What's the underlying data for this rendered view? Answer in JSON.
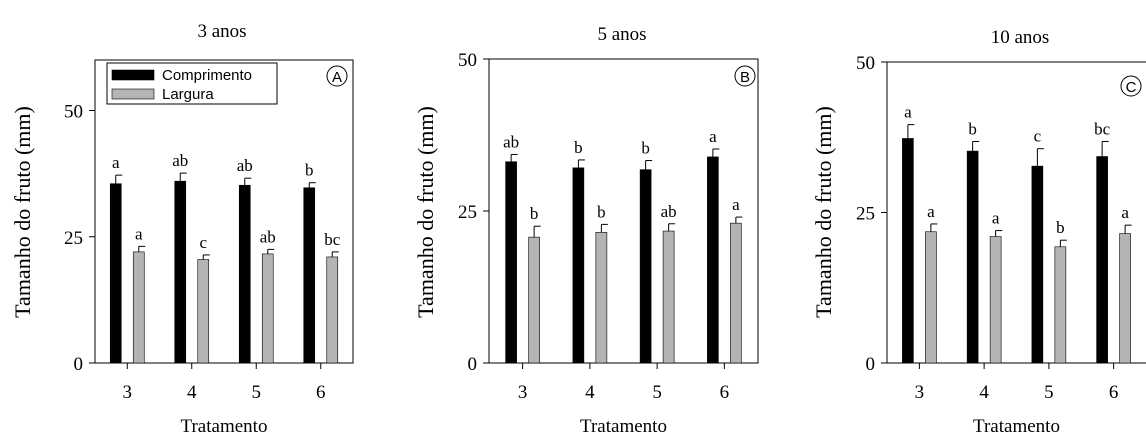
{
  "figure": {
    "background": "#ffffff"
  },
  "chart_data": [
    {
      "type": "bar",
      "title": "3 anos",
      "panel_label": "A",
      "xlabel": "Tratamento",
      "ylabel": "Tamanho do fruto (mm)",
      "categories": [
        "3",
        "4",
        "5",
        "6"
      ],
      "ylim": [
        0,
        60
      ],
      "yticks": [
        "0",
        "25",
        "50"
      ],
      "grid": false,
      "legend": {
        "position": "top-left",
        "entries": [
          "Comprimento",
          "Largura"
        ]
      },
      "series": [
        {
          "name": "Comprimento",
          "color": "#000000",
          "values": [
            35.5,
            36.0,
            35.2,
            34.7
          ],
          "errors": [
            1.7,
            1.6,
            1.4,
            1.0
          ],
          "letters": [
            "a",
            "ab",
            "ab",
            "b"
          ]
        },
        {
          "name": "Largura",
          "color": "#b4b4b4",
          "values": [
            22.0,
            20.5,
            21.6,
            21.0
          ],
          "errors": [
            1.1,
            0.9,
            0.9,
            1.0
          ],
          "letters": [
            "a",
            "c",
            "ab",
            "bc"
          ]
        }
      ]
    },
    {
      "type": "bar",
      "title": "5 anos",
      "panel_label": "B",
      "xlabel": "Tratamento",
      "ylabel": "Tamanho do fruto (mm)",
      "categories": [
        "3",
        "4",
        "5",
        "6"
      ],
      "ylim": [
        0,
        50
      ],
      "yticks": [
        "0",
        "25",
        "50"
      ],
      "grid": false,
      "series": [
        {
          "name": "Comprimento",
          "color": "#000000",
          "values": [
            33.1,
            32.1,
            31.8,
            33.9
          ],
          "errors": [
            1.2,
            1.3,
            1.5,
            1.3
          ],
          "letters": [
            "ab",
            "b",
            "b",
            "a"
          ]
        },
        {
          "name": "Largura",
          "color": "#b4b4b4",
          "values": [
            20.7,
            21.5,
            21.7,
            23.0
          ],
          "errors": [
            1.8,
            1.3,
            1.2,
            1.0
          ],
          "letters": [
            "b",
            "b",
            "ab",
            "a"
          ]
        }
      ]
    },
    {
      "type": "bar",
      "title": "10 anos",
      "panel_label": "C",
      "xlabel": "Tratamento",
      "ylabel": "Tamanho do fruto (mm)",
      "categories": [
        "3",
        "4",
        "5",
        "6"
      ],
      "ylim": [
        0,
        50
      ],
      "yticks": [
        "0",
        "25",
        "50"
      ],
      "grid": false,
      "series": [
        {
          "name": "Comprimento",
          "color": "#000000",
          "values": [
            37.3,
            35.2,
            32.7,
            34.3
          ],
          "errors": [
            2.3,
            1.6,
            2.9,
            2.5
          ],
          "letters": [
            "a",
            "b",
            "c",
            "bc"
          ]
        },
        {
          "name": "Largura",
          "color": "#b4b4b4",
          "values": [
            21.8,
            21.0,
            19.3,
            21.5
          ],
          "errors": [
            1.3,
            1.0,
            1.1,
            1.4
          ],
          "letters": [
            "a",
            "a",
            "b",
            "a"
          ]
        }
      ]
    }
  ]
}
